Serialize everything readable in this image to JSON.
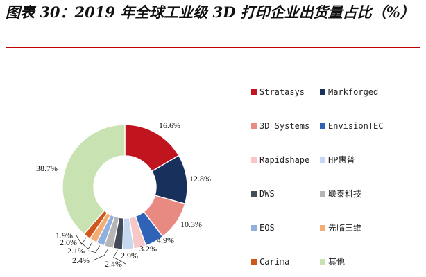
{
  "chart_data": {
    "type": "pie",
    "title": "图表 30：2019 年全球工业级 3D 打印企业出货量占比（%）",
    "style": "donut",
    "categories": [
      "Stratasys",
      "Markforged",
      "3D Systems",
      "EnvisionTEC",
      "Rapidshape",
      "HP惠普",
      "DWS",
      "联泰科技",
      "EOS",
      "先临三维",
      "Carima",
      "其他"
    ],
    "values": [
      16.6,
      12.8,
      10.3,
      4.9,
      3.2,
      2.9,
      2.4,
      2.4,
      2.1,
      2.0,
      1.9,
      38.7
    ],
    "labels": [
      "16.6%",
      "12.8%",
      "10.3%",
      "4.9%",
      "3.2%",
      "2.9%",
      "2.4%",
      "2.4%",
      "2.1%",
      "2.0%",
      "1.9%",
      "38.7%"
    ],
    "colors": [
      "#c0141e",
      "#17305c",
      "#e88a82",
      "#2e63b8",
      "#f8c8c8",
      "#c4d8ef",
      "#444b58",
      "#b5b5b5",
      "#8fb0df",
      "#f3ad74",
      "#d1561a",
      "#c8e2b2"
    ],
    "legend_position": "right"
  }
}
